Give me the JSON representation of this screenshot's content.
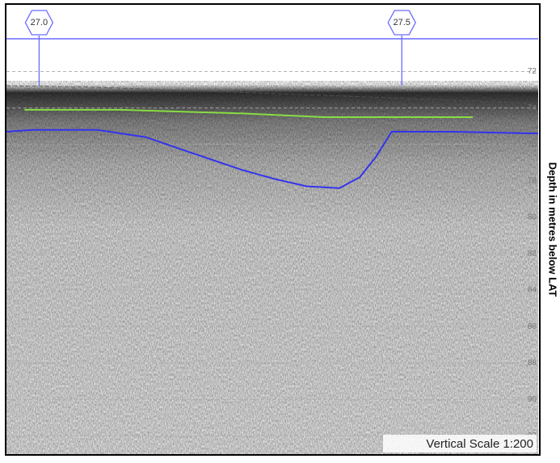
{
  "chart_data": {
    "type": "profile",
    "ylabel": "Depth in metres below LAT",
    "annotation": "Vertical Scale 1:200",
    "xlim": [
      26.955,
      27.688
    ],
    "xticks": [
      {
        "value": 27,
        "label": "27.0"
      },
      {
        "value": 27.5,
        "label": "27.5"
      }
    ],
    "ylim": [
      70.2,
      93.0
    ],
    "yticks": [
      72,
      74,
      76,
      78,
      80,
      82,
      84,
      86,
      88,
      90,
      92
    ],
    "grid": true,
    "series": [
      {
        "color": "#3333ee",
        "x": [
          26.955,
          26.991,
          27.08,
          27.147,
          27.213,
          27.28,
          27.325,
          27.369,
          27.414,
          27.442,
          27.464,
          27.486,
          27.57,
          27.688
        ],
        "values": [
          75.3,
          75.2,
          75.2,
          75.6,
          76.5,
          77.4,
          77.9,
          78.3,
          78.4,
          77.8,
          76.7,
          75.3,
          75.3,
          75.4
        ]
      },
      {
        "color": "#88dd44",
        "x": [
          26.98,
          27.113,
          27.28,
          27.392,
          27.481,
          27.598
        ],
        "values": [
          74.1,
          74.1,
          74.3,
          74.5,
          74.5,
          74.5
        ]
      }
    ]
  }
}
